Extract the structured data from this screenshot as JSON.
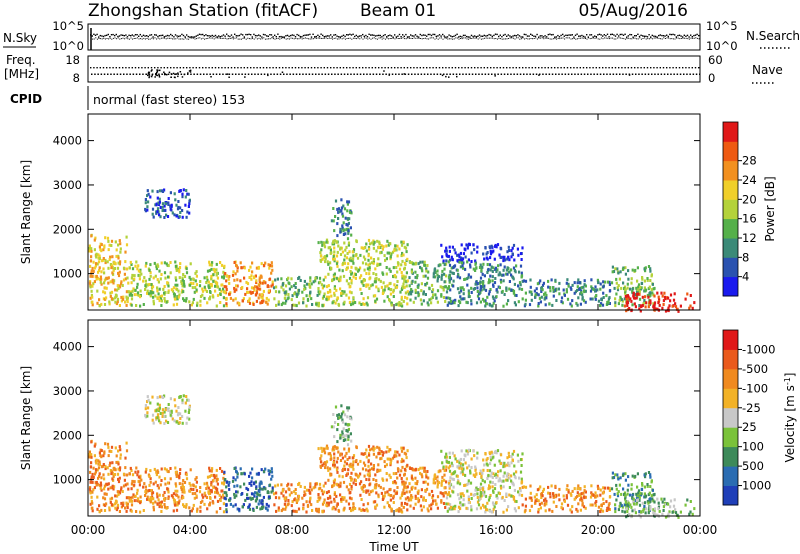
{
  "header": {
    "station": "Zhongshan Station (fitACF)",
    "beam": "Beam 01",
    "date": "05/Aug/2016"
  },
  "top_panels": {
    "nsky_label": "N.Sky",
    "nsky_tick_top": "10^5",
    "nsky_tick_bottom": "10^0",
    "nsearch_label": "N.Search",
    "nsearch_tick_top": "10^5",
    "nsearch_tick_bottom": "10^0",
    "freq_label_1": "Freq.",
    "freq_label_2": "[MHz]",
    "freq_tick_top": "18",
    "freq_tick_bottom": "8",
    "nave_label": "Nave",
    "nave_tick_top": "60",
    "nave_tick_bottom": "0",
    "cpid_label": "CPID",
    "cpid_text": "normal (fast stereo) 153"
  },
  "x_axis": {
    "title": "Time UT",
    "ticks": [
      "00:00",
      "04:00",
      "08:00",
      "12:00",
      "16:00",
      "20:00",
      "00:00"
    ]
  },
  "chart_data": [
    {
      "type": "heatmap",
      "name": "power",
      "ylabel": "Slant Range [km]",
      "ylim": [
        180,
        4600
      ],
      "yticks": [
        1000,
        2000,
        3000,
        4000
      ],
      "xlim": [
        0,
        24
      ],
      "colorbar": {
        "label": "Power [dB]",
        "ticks": [
          "4",
          "8",
          "12",
          "16",
          "20",
          "24",
          "28"
        ],
        "colors": [
          "#1a1aee",
          "#2a52b0",
          "#3b8a78",
          "#55b04a",
          "#b4d23a",
          "#f0cf2a",
          "#f2901f",
          "#ee5a12",
          "#e01818"
        ]
      },
      "regions": [
        {
          "t": [
            0.0,
            1.5
          ],
          "r": [
            300,
            1900
          ],
          "level": 5
        },
        {
          "t": [
            1.5,
            5.3
          ],
          "r": [
            300,
            1300
          ],
          "level": 4
        },
        {
          "t": [
            2.2,
            4.0
          ],
          "r": [
            2300,
            2950
          ],
          "level": 1
        },
        {
          "t": [
            5.3,
            7.2
          ],
          "r": [
            300,
            1300
          ],
          "level": 6
        },
        {
          "t": [
            7.2,
            9.0
          ],
          "r": [
            300,
            950
          ],
          "level": 3
        },
        {
          "t": [
            9.0,
            12.5
          ],
          "r": [
            300,
            1800
          ],
          "level": 4
        },
        {
          "t": [
            9.5,
            10.3
          ],
          "r": [
            1800,
            2700
          ],
          "level": 2
        },
        {
          "t": [
            12.5,
            14.0
          ],
          "r": [
            300,
            1300
          ],
          "level": 3
        },
        {
          "t": [
            13.8,
            17.0
          ],
          "r": [
            1300,
            1700
          ],
          "level": 0
        },
        {
          "t": [
            14.0,
            17.0
          ],
          "r": [
            300,
            1300
          ],
          "level": 2
        },
        {
          "t": [
            17.0,
            20.5
          ],
          "r": [
            300,
            900
          ],
          "level": 2
        },
        {
          "t": [
            20.5,
            22.2
          ],
          "r": [
            300,
            1200
          ],
          "level": 3
        },
        {
          "t": [
            21.0,
            23.8
          ],
          "r": [
            180,
            600
          ],
          "level": 8
        }
      ]
    },
    {
      "type": "heatmap",
      "name": "velocity",
      "ylabel": "Slant Range [km]",
      "ylim": [
        180,
        4600
      ],
      "yticks": [
        1000,
        2000,
        3000,
        4000
      ],
      "xlim": [
        0,
        24
      ],
      "colorbar": {
        "label": "Velocity [m s^-1]",
        "ticks": [
          "1000",
          "500",
          "100",
          "25",
          "-25",
          "-100",
          "-500",
          "-1000"
        ],
        "colors": [
          "#1f3fb8",
          "#2a6cb2",
          "#3d8a5a",
          "#7ac23a",
          "#c8c8c8",
          "#f2b227",
          "#f08a1f",
          "#ea5a1c",
          "#e01818"
        ]
      },
      "regions": [
        {
          "t": [
            0.0,
            1.5
          ],
          "r": [
            300,
            1900
          ],
          "level": 6
        },
        {
          "t": [
            1.5,
            5.3
          ],
          "r": [
            300,
            1300
          ],
          "level": 6
        },
        {
          "t": [
            2.2,
            4.0
          ],
          "r": [
            2300,
            2950
          ],
          "level": 4
        },
        {
          "t": [
            5.3,
            7.2
          ],
          "r": [
            300,
            1300
          ],
          "level": 1
        },
        {
          "t": [
            7.2,
            9.0
          ],
          "r": [
            300,
            950
          ],
          "level": 6
        },
        {
          "t": [
            9.0,
            12.5
          ],
          "r": [
            300,
            1800
          ],
          "level": 6
        },
        {
          "t": [
            9.5,
            10.3
          ],
          "r": [
            1800,
            2700
          ],
          "level": 3
        },
        {
          "t": [
            12.5,
            14.0
          ],
          "r": [
            300,
            1300
          ],
          "level": 6
        },
        {
          "t": [
            13.8,
            17.0
          ],
          "r": [
            1300,
            1700
          ],
          "level": 4
        },
        {
          "t": [
            14.0,
            17.0
          ],
          "r": [
            300,
            1300
          ],
          "level": 4
        },
        {
          "t": [
            17.0,
            20.5
          ],
          "r": [
            300,
            900
          ],
          "level": 6
        },
        {
          "t": [
            20.5,
            22.2
          ],
          "r": [
            300,
            1200
          ],
          "level": 2
        },
        {
          "t": [
            21.0,
            23.8
          ],
          "r": [
            180,
            600
          ],
          "level": 3
        }
      ]
    }
  ]
}
